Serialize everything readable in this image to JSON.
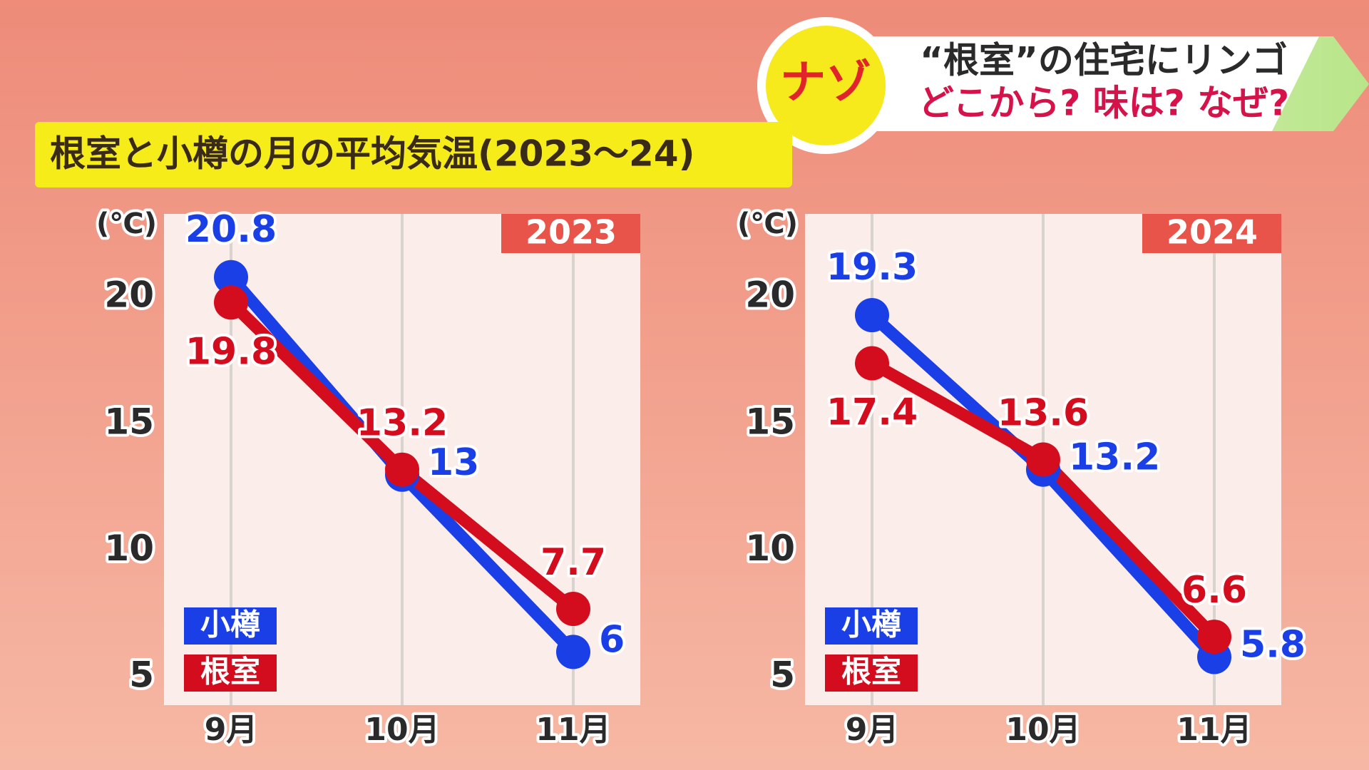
{
  "header": {
    "badge": "ナゾ",
    "headline_1": "“根室”の住宅にリンゴ",
    "headline_2": "どこから? 味は? なぜ?"
  },
  "title": "根室と小樽の月の平均気温(2023～24)",
  "chart_data": [
    {
      "type": "line",
      "title": "2023",
      "y_label": "(℃)",
      "categories": [
        "9月",
        "10月",
        "11月"
      ],
      "series": [
        {
          "name": "小樽",
          "color": "#1b3fe6",
          "values": [
            20.8,
            13,
            6
          ]
        },
        {
          "name": "根室",
          "color": "#d40d1e",
          "values": [
            19.8,
            13.2,
            7.7
          ]
        }
      ],
      "ylim": [
        3.9,
        23.3
      ],
      "yticks": [
        5,
        10,
        15,
        20
      ],
      "legend": "bottom-left"
    },
    {
      "type": "line",
      "title": "2024",
      "y_label": "(℃)",
      "categories": [
        "9月",
        "10月",
        "11月"
      ],
      "series": [
        {
          "name": "小樽",
          "color": "#1b3fe6",
          "values": [
            19.3,
            13.2,
            5.8
          ]
        },
        {
          "name": "根室",
          "color": "#d40d1e",
          "values": [
            17.4,
            13.6,
            6.6
          ]
        }
      ],
      "ylim": [
        3.9,
        23.3
      ],
      "yticks": [
        5,
        10,
        15,
        20
      ],
      "legend": "bottom-left"
    }
  ]
}
